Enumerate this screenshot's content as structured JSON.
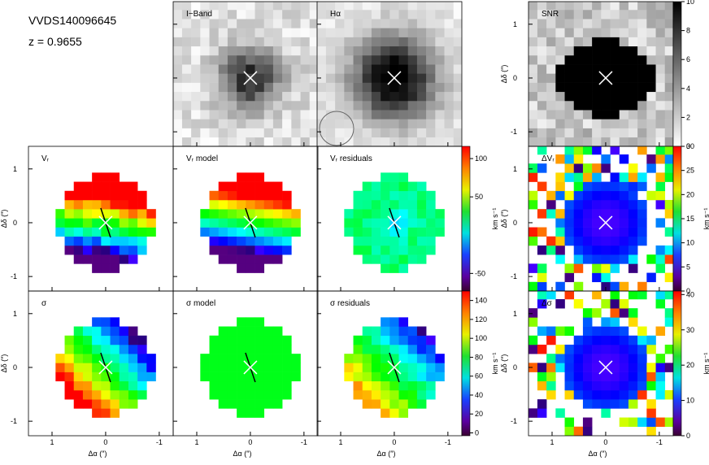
{
  "header": {
    "object": "VVDS140096645",
    "redshift": "z = 0.9655"
  },
  "panels": [
    "I−Band",
    "Hα",
    "SNR",
    "Vᵣ",
    "Vᵣ model",
    "Vᵣ residuals",
    "ΔVᵣ",
    "σ",
    "σ model",
    "σ residuals",
    "Δσ"
  ],
  "axes": {
    "xlabel": "Δα (″)",
    "ylabel": "Δδ (″)",
    "xlim": [
      1.44,
      -1.26
    ],
    "xticks": [
      1,
      0,
      -1
    ],
    "ylim": [
      -1.27,
      1.42
    ],
    "yticks": [
      -1,
      0,
      1
    ]
  },
  "colorbars": [
    {
      "ylim": [
        0,
        10
      ],
      "yticks": [
        0,
        2,
        4,
        6,
        8,
        10
      ],
      "colormap": "gray"
    },
    {
      "label": "km s⁻¹",
      "ylim": [
        -73,
        116
      ],
      "yticks": [
        -50,
        50,
        100
      ],
      "colormap": "rainbow"
    },
    {
      "label": "km s⁻¹",
      "ylim": [
        0,
        30
      ],
      "yticks": [
        0,
        5,
        10,
        15,
        20,
        25,
        30
      ],
      "colormap": "rainbow"
    },
    {
      "label": "km s⁻¹",
      "ylim": [
        -3,
        150
      ],
      "yticks": [
        0,
        20,
        40,
        60,
        80,
        100,
        120,
        140
      ],
      "colormap": "rainbow"
    },
    {
      "label": "km s⁻¹",
      "ylim": [
        0,
        41
      ],
      "yticks": [
        0,
        10,
        20,
        30,
        40
      ],
      "colormap": "rainbow"
    }
  ]
}
